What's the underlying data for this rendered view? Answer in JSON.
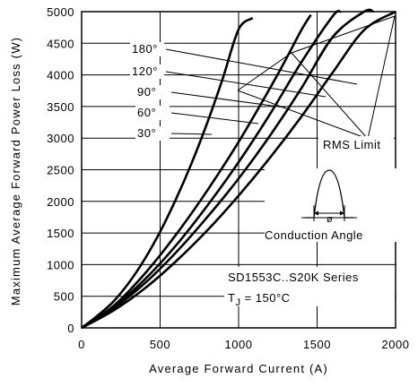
{
  "chart_data": {
    "type": "line",
    "title": "",
    "xlabel": "Average Forward Current (A)",
    "ylabel": "Maximum Average Forward Power Loss (W)",
    "xlim": [
      0,
      2000
    ],
    "ylim": [
      0,
      5000
    ],
    "x_ticks": [
      "0",
      "500",
      "1000",
      "1500",
      "2000"
    ],
    "y_ticks": [
      "0",
      "500",
      "1000",
      "1500",
      "2000",
      "2500",
      "3000",
      "3500",
      "4000",
      "4500",
      "5000"
    ],
    "grid": true,
    "series": [
      {
        "name": "30°",
        "x": [
          0,
          100,
          200,
          300,
          400,
          500,
          600,
          700,
          800,
          900,
          1000,
          1090
        ],
        "y": [
          0,
          190,
          410,
          710,
          1080,
          1520,
          2030,
          2600,
          3240,
          3950,
          4720,
          4900
        ]
      },
      {
        "name": "60°",
        "x": [
          0,
          200,
          400,
          600,
          800,
          1000,
          1200,
          1300,
          1400,
          1460
        ],
        "y": [
          0,
          340,
          850,
          1470,
          2170,
          2940,
          3790,
          4240,
          4710,
          4950
        ]
      },
      {
        "name": "90°",
        "x": [
          0,
          200,
          400,
          600,
          800,
          1000,
          1200,
          1400,
          1600,
          1650
        ],
        "y": [
          0,
          320,
          760,
          1300,
          1930,
          2620,
          3380,
          4200,
          4930,
          5000
        ]
      },
      {
        "name": "120°",
        "x": [
          0,
          200,
          400,
          600,
          800,
          1000,
          1200,
          1400,
          1600,
          1800,
          1860
        ],
        "y": [
          0,
          300,
          700,
          1190,
          1750,
          2360,
          3040,
          3790,
          4600,
          5000,
          5000
        ]
      },
      {
        "name": "180°",
        "x": [
          0,
          200,
          400,
          600,
          800,
          1000,
          1200,
          1400,
          1600,
          1800,
          2000
        ],
        "y": [
          0,
          270,
          620,
          1050,
          1540,
          2090,
          2690,
          3340,
          4040,
          4710,
          5000
        ]
      }
    ],
    "rms_limit_label": "RMS Limit",
    "conduction_angle_label": "Conduction Angle",
    "phi_symbol": "ø",
    "series_label": "SD1553C..S20K Series",
    "tj_label": "T",
    "tj_sub": "J",
    "tj_value": " = 150°C"
  }
}
